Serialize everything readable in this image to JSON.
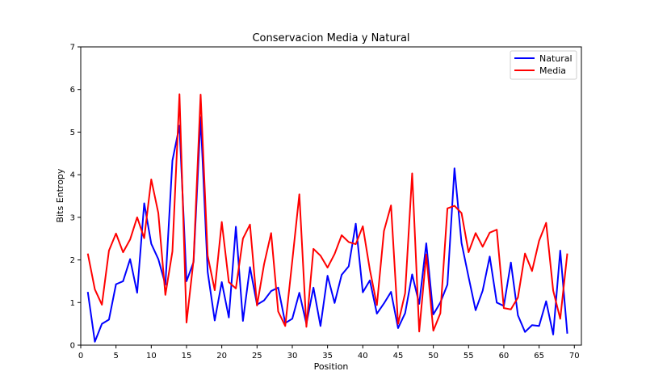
{
  "chart_data": {
    "type": "line",
    "title": "Conservacion Media y Natural",
    "xlabel": "Position",
    "ylabel": "Bits Entropy",
    "xlim": [
      0,
      71
    ],
    "ylim": [
      0,
      7
    ],
    "xticks": [
      0,
      5,
      10,
      15,
      20,
      25,
      30,
      35,
      40,
      45,
      50,
      55,
      60,
      65,
      70
    ],
    "yticks": [
      0,
      1,
      2,
      3,
      4,
      5,
      6,
      7
    ],
    "grid": false,
    "legend": "top-right",
    "x": [
      1,
      2,
      3,
      4,
      5,
      6,
      7,
      8,
      9,
      10,
      11,
      12,
      13,
      14,
      15,
      16,
      17,
      18,
      19,
      20,
      21,
      22,
      23,
      24,
      25,
      26,
      27,
      28,
      29,
      30,
      31,
      32,
      33,
      34,
      35,
      36,
      37,
      38,
      39,
      40,
      41,
      42,
      43,
      44,
      45,
      46,
      47,
      48,
      49,
      50,
      51,
      52,
      53,
      54,
      55,
      56,
      57,
      58,
      59,
      60,
      61,
      62,
      63,
      64,
      65,
      66,
      67,
      68,
      69
    ],
    "series": [
      {
        "name": "Natural",
        "color": "#0000ff",
        "values": [
          1.25,
          0.08,
          0.5,
          0.6,
          1.43,
          1.5,
          2.02,
          1.23,
          3.33,
          2.38,
          2.02,
          1.42,
          4.33,
          5.15,
          1.5,
          1.95,
          5.35,
          1.72,
          0.58,
          1.48,
          0.65,
          2.78,
          0.57,
          1.83,
          0.95,
          1.05,
          1.27,
          1.35,
          0.52,
          0.62,
          1.23,
          0.5,
          1.35,
          0.45,
          1.63,
          0.99,
          1.65,
          1.85,
          2.85,
          1.24,
          1.52,
          0.74,
          0.98,
          1.25,
          0.4,
          0.75,
          1.66,
          0.97,
          2.39,
          0.72,
          1.0,
          1.42,
          4.15,
          2.4,
          1.6,
          0.82,
          1.28,
          2.08,
          1.0,
          0.92,
          1.94,
          0.7,
          0.31,
          0.47,
          0.45,
          1.03,
          0.25,
          2.22,
          0.27
        ]
      },
      {
        "name": "Media",
        "color": "#ff0000",
        "values": [
          2.15,
          1.31,
          0.95,
          2.22,
          2.62,
          2.18,
          2.48,
          3.0,
          2.51,
          3.89,
          3.1,
          1.18,
          2.2,
          5.89,
          0.53,
          2.0,
          5.88,
          2.1,
          1.29,
          2.89,
          1.48,
          1.33,
          2.5,
          2.83,
          0.93,
          1.9,
          2.63,
          0.79,
          0.45,
          1.98,
          3.54,
          0.43,
          2.26,
          2.1,
          1.82,
          2.14,
          2.58,
          2.42,
          2.37,
          2.79,
          1.77,
          0.94,
          2.68,
          3.28,
          0.5,
          1.22,
          4.03,
          0.32,
          2.13,
          0.34,
          0.75,
          3.21,
          3.27,
          3.1,
          2.18,
          2.63,
          2.31,
          2.64,
          2.71,
          0.87,
          0.84,
          1.12,
          2.15,
          1.74,
          2.45,
          2.87,
          1.28,
          0.62,
          2.15
        ]
      }
    ]
  }
}
